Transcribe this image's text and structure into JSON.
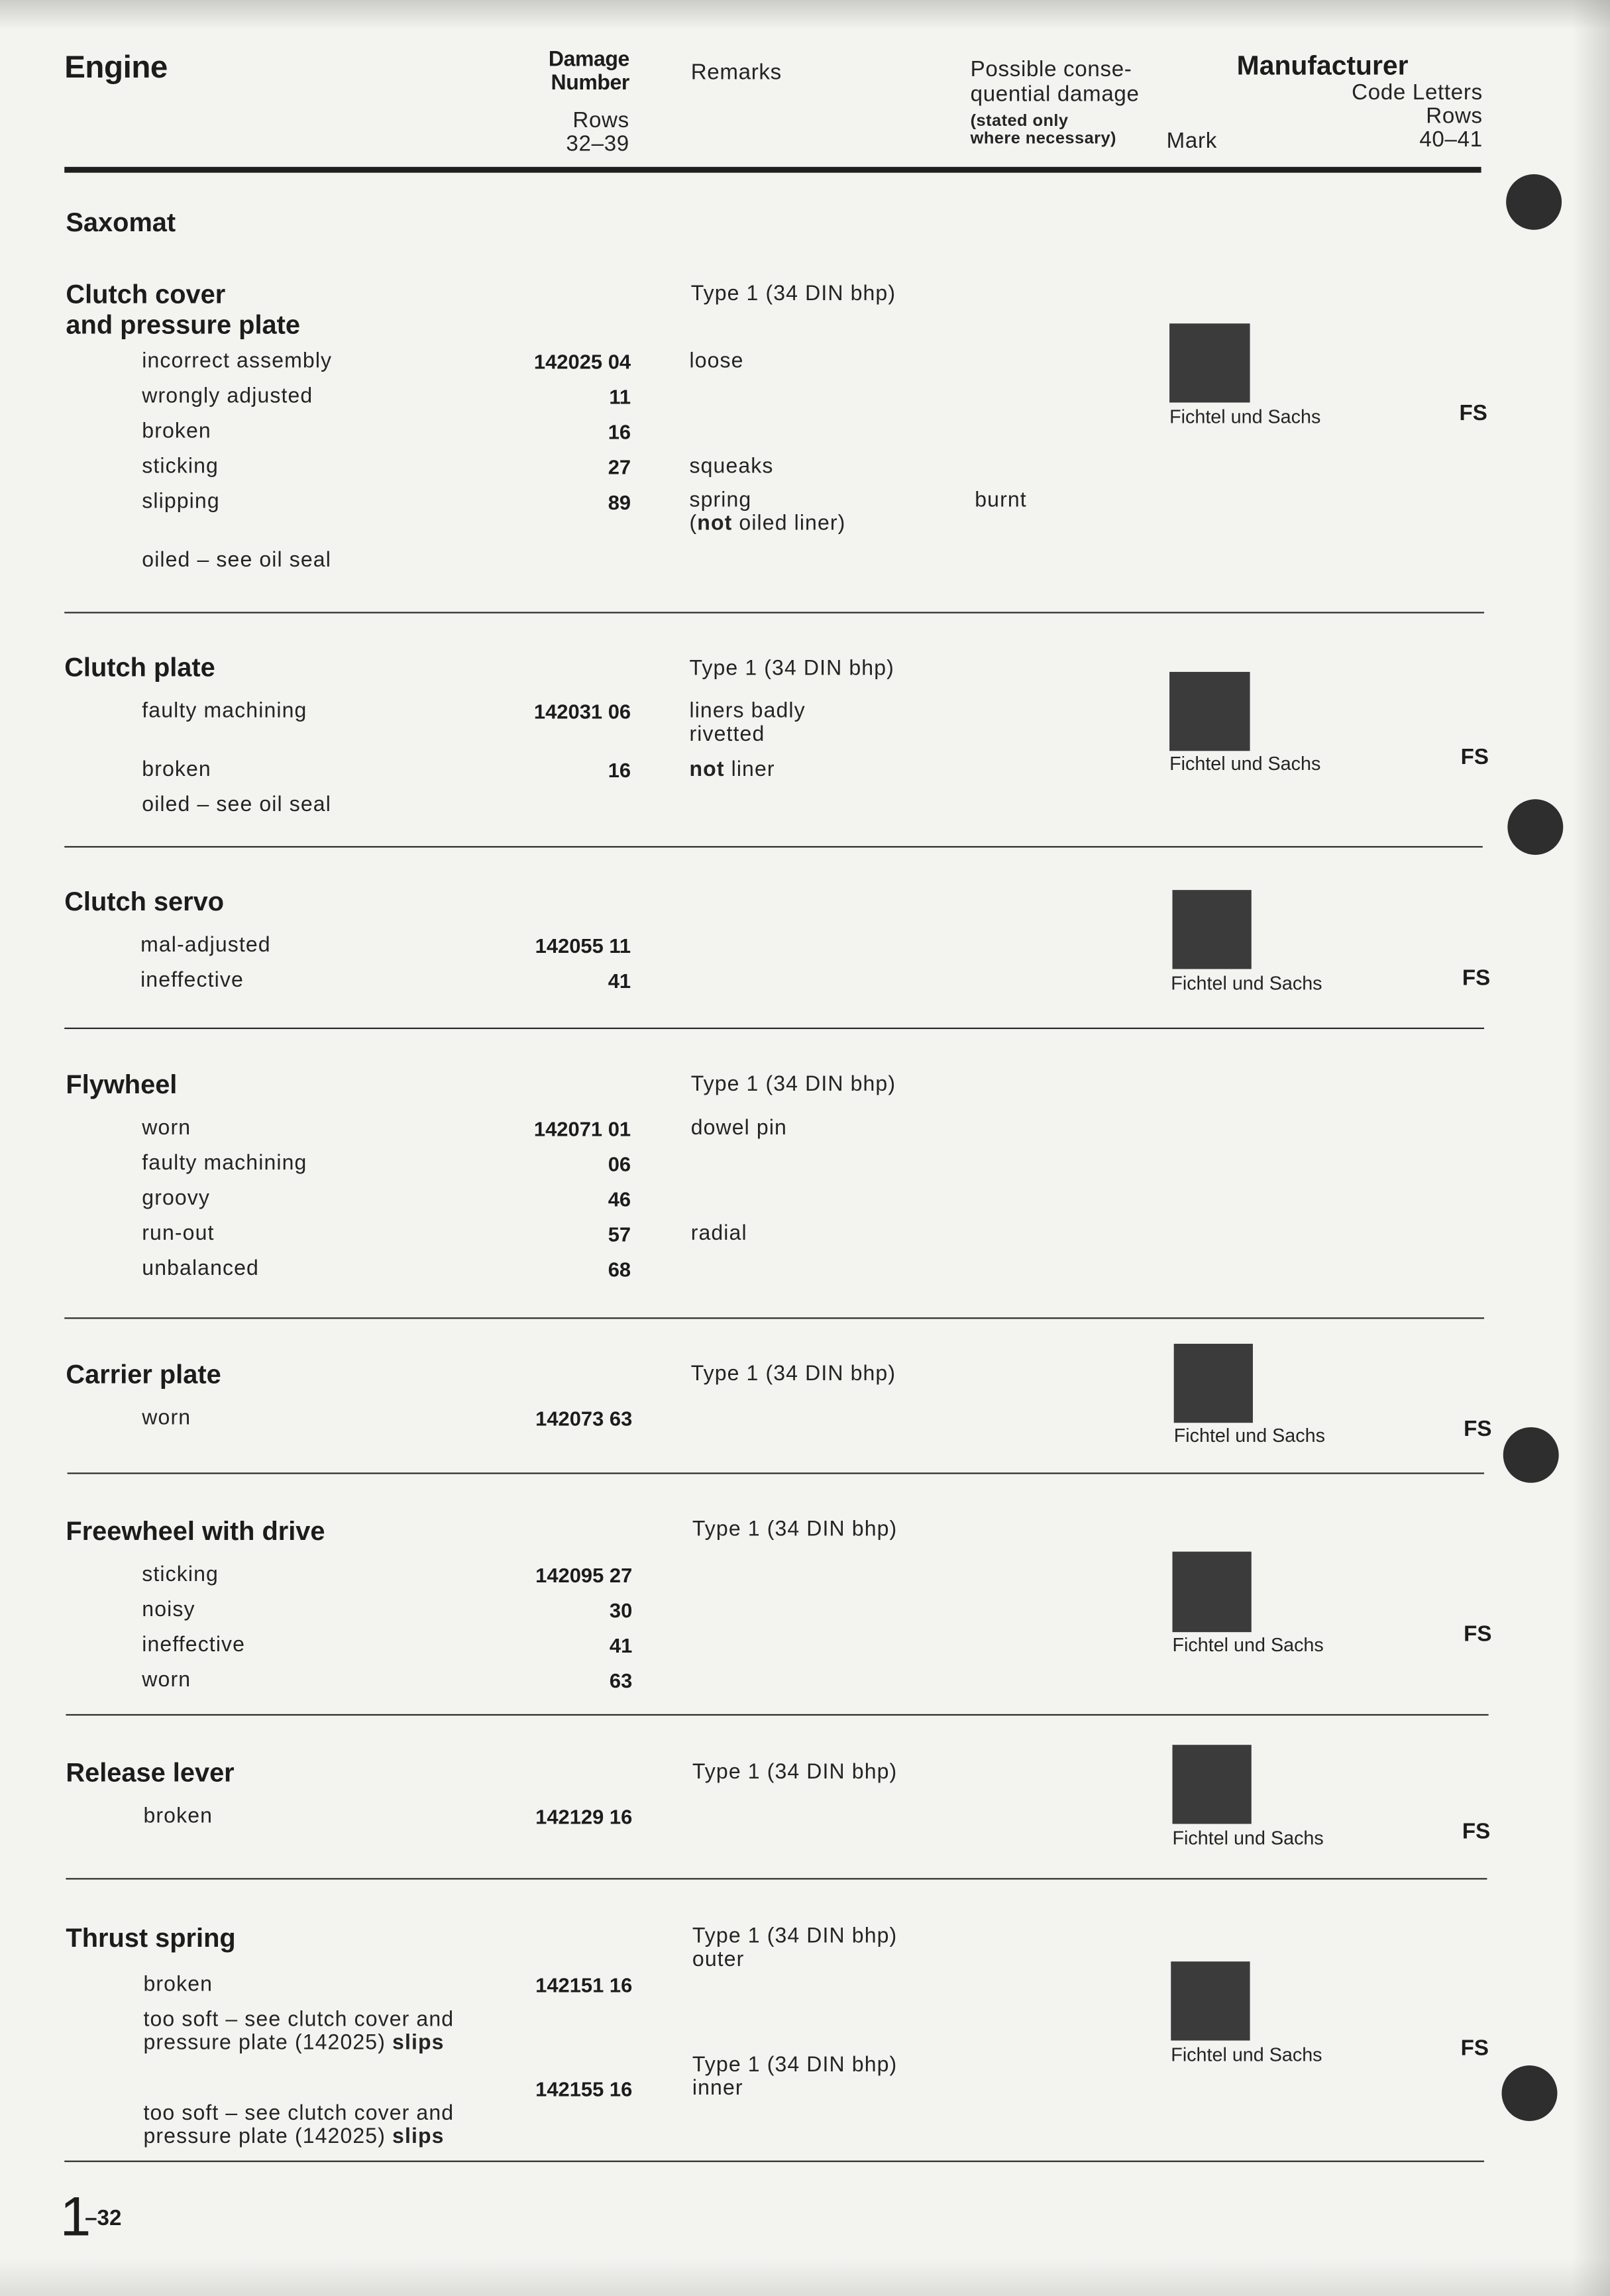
{
  "header": {
    "title": "Engine",
    "damage_number": {
      "line1": "Damage",
      "line2": "Number",
      "rows_label": "Rows",
      "rows_range": "32–39"
    },
    "remarks_label": "Remarks",
    "consequential": {
      "line1": "Possible conse-",
      "line2": "quential damage",
      "note_line1": "(stated only",
      "note_line2": "where necessary)"
    },
    "manufacturer": {
      "label": "Manufacturer",
      "mark_label": "Mark",
      "code_letters_label": "Code Letters",
      "rows_label": "Rows",
      "rows_range": "40–41"
    }
  },
  "group_title": "Saxomat",
  "sections": [
    {
      "title_line1": "Clutch cover",
      "title_line2": "and pressure plate",
      "type_note": "Type 1 (34 DIN bhp)",
      "manufacturer": "Fichtel und Sachs",
      "code": "FS",
      "items": [
        {
          "fault": "incorrect assembly",
          "number": "142025 04",
          "remark": "loose"
        },
        {
          "fault": "wrongly adjusted",
          "number": "11"
        },
        {
          "fault": "broken",
          "number": "16"
        },
        {
          "fault": "sticking",
          "number": "27",
          "remark": "squeaks"
        },
        {
          "fault": "slipping",
          "number": "89",
          "remark": "spring",
          "remark_line2": {
            "pre": "(",
            "bold": "not",
            "post": " oiled liner)"
          },
          "consequential": "burnt"
        },
        {
          "fault": "oiled – see oil seal"
        }
      ]
    },
    {
      "title_line1": "Clutch plate",
      "type_note": "Type 1 (34 DIN bhp)",
      "manufacturer": "Fichtel und Sachs",
      "code": "FS",
      "items": [
        {
          "fault": "faulty machining",
          "number": "142031 06",
          "remark": "liners badly",
          "remark_line2": "rivetted"
        },
        {
          "fault": "broken",
          "number": "16",
          "remark": {
            "bold": "not",
            "post": " liner"
          }
        },
        {
          "fault": "oiled – see oil seal"
        }
      ]
    },
    {
      "title_line1": "Clutch servo",
      "manufacturer": "Fichtel und Sachs",
      "code": "FS",
      "items": [
        {
          "fault": "mal-adjusted",
          "number": "142055 11"
        },
        {
          "fault": "ineffective",
          "number": "41"
        }
      ]
    },
    {
      "title_line1": "Flywheel",
      "type_note": "Type 1 (34 DIN bhp)",
      "items": [
        {
          "fault": "worn",
          "number": "142071 01",
          "remark": "dowel pin"
        },
        {
          "fault": "faulty machining",
          "number": "06"
        },
        {
          "fault": "groovy",
          "number": "46"
        },
        {
          "fault": "run-out",
          "number": "57",
          "remark": "radial"
        },
        {
          "fault": "unbalanced",
          "number": "68"
        }
      ]
    },
    {
      "title_line1": "Carrier plate",
      "type_note": "Type 1 (34 DIN bhp)",
      "manufacturer": "Fichtel und Sachs",
      "code": "FS",
      "items": [
        {
          "fault": "worn",
          "number": "142073 63"
        }
      ]
    },
    {
      "title_line1": "Freewheel with drive",
      "type_note": "Type 1 (34 DIN bhp)",
      "manufacturer": "Fichtel und Sachs",
      "code": "FS",
      "items": [
        {
          "fault": "sticking",
          "number": "142095 27"
        },
        {
          "fault": "noisy",
          "number": "30"
        },
        {
          "fault": "ineffective",
          "number": "41"
        },
        {
          "fault": "worn",
          "number": "63"
        }
      ]
    },
    {
      "title_line1": "Release lever",
      "type_note": "Type 1 (34 DIN bhp)",
      "manufacturer": "Fichtel und Sachs",
      "code": "FS",
      "items": [
        {
          "fault": "broken",
          "number": "142129 16"
        }
      ]
    },
    {
      "title_line1": "Thrust spring",
      "type_notes": [
        {
          "line1": "Type 1 (34 DIN bhp)",
          "line2": "outer"
        },
        {
          "line1": "Type 1 (34 DIN bhp)",
          "line2": "inner"
        }
      ],
      "manufacturer": "Fichtel und Sachs",
      "code": "FS",
      "items": [
        {
          "fault": "broken",
          "number": "142151 16"
        },
        {
          "fault_line1": "too soft – see clutch cover and",
          "fault_line2": {
            "pre": "pressure plate (142025) ",
            "bold": "slips"
          }
        },
        {
          "number": "142155 16"
        },
        {
          "fault_line1": "too soft – see clutch cover and",
          "fault_line2": {
            "pre": "pressure plate (142025) ",
            "bold": "slips"
          }
        }
      ]
    }
  ],
  "footer": {
    "page_section": "1",
    "page_number": "–32"
  }
}
